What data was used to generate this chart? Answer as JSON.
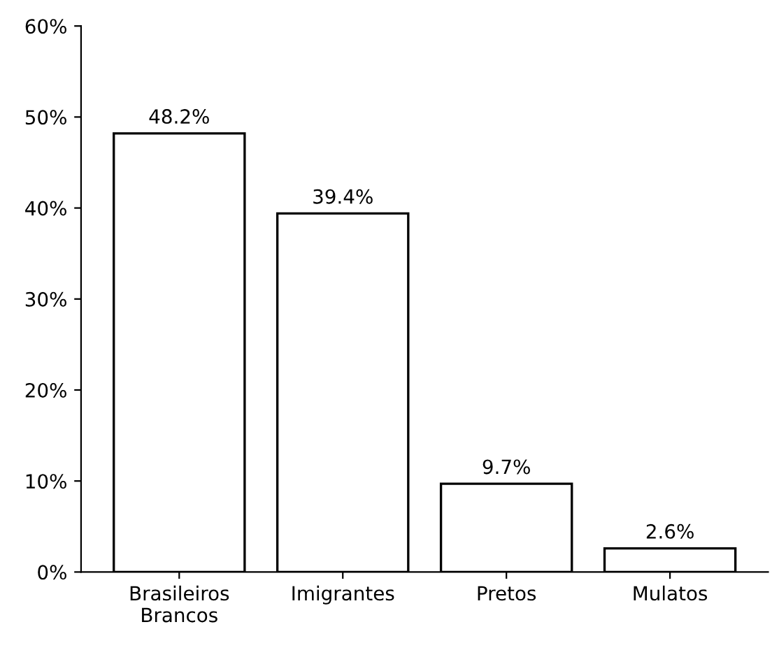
{
  "chart_data": {
    "type": "bar",
    "categories": [
      "Brasileiros\nBrancos",
      "Imigrantes",
      "Pretos",
      "Mulatos"
    ],
    "values": [
      48.2,
      39.4,
      9.7,
      2.6
    ],
    "value_labels": [
      "48.2%",
      "39.4%",
      "9.7%",
      "2.6%"
    ],
    "color": "#ffffff",
    "ylim": [
      0,
      60
    ],
    "yticks": [
      {
        "value": 0,
        "label": "0%"
      },
      {
        "value": 10,
        "label": "10%"
      },
      {
        "value": 20,
        "label": "20%"
      },
      {
        "value": 30,
        "label": "30%"
      },
      {
        "value": 40,
        "label": "40%"
      },
      {
        "value": 50,
        "label": "50%"
      },
      {
        "value": 60,
        "label": "60%"
      }
    ],
    "grid": false,
    "legend": false
  }
}
